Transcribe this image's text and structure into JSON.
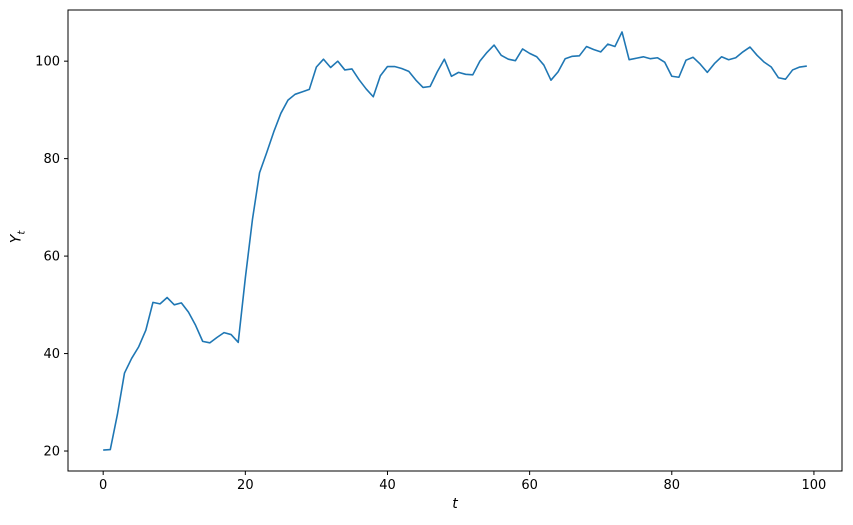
{
  "figure": {
    "background": "#ffffff",
    "xlabel": "t",
    "ylabel_base": "Y",
    "ylabel_subscript": "t"
  },
  "chart_data": {
    "type": "line",
    "title": "",
    "xlabel": "t",
    "ylabel": "Y_t",
    "grid": false,
    "legend": null,
    "line_color": "#1f77b4",
    "axis_color": "#000000",
    "xlim": [
      -4.95,
      103.95
    ],
    "ylim": [
      15.9,
      110.5
    ],
    "xticks": [
      0,
      20,
      40,
      60,
      80,
      100
    ],
    "yticks": [
      20,
      40,
      60,
      80,
      100
    ],
    "x": [
      0,
      1,
      2,
      3,
      4,
      5,
      6,
      7,
      8,
      9,
      10,
      11,
      12,
      13,
      14,
      15,
      16,
      17,
      18,
      19,
      20,
      21,
      22,
      23,
      24,
      25,
      26,
      27,
      28,
      29,
      30,
      31,
      32,
      33,
      34,
      35,
      36,
      37,
      38,
      39,
      40,
      41,
      42,
      43,
      44,
      45,
      46,
      47,
      48,
      49,
      50,
      51,
      52,
      53,
      54,
      55,
      56,
      57,
      58,
      59,
      60,
      61,
      62,
      63,
      64,
      65,
      66,
      67,
      68,
      69,
      70,
      71,
      72,
      73,
      74,
      75,
      76,
      77,
      78,
      79,
      80,
      81,
      82,
      83,
      84,
      85,
      86,
      87,
      88,
      89,
      90,
      91,
      92,
      93,
      94,
      95,
      96,
      97,
      98,
      99
    ],
    "values": [
      20.2,
      20.3,
      27.5,
      36.0,
      39.0,
      41.4,
      44.8,
      50.5,
      50.2,
      51.5,
      50.0,
      50.4,
      48.5,
      45.8,
      42.5,
      42.2,
      43.3,
      44.3,
      43.9,
      42.3,
      55.5,
      67.5,
      77.1,
      81.2,
      85.5,
      89.3,
      92.0,
      93.2,
      93.7,
      94.2,
      98.8,
      100.4,
      98.7,
      100.0,
      98.2,
      98.4,
      96.2,
      94.3,
      92.7,
      97.0,
      98.9,
      98.9,
      98.5,
      97.9,
      96.1,
      94.6,
      94.8,
      97.8,
      100.4,
      96.9,
      97.7,
      97.3,
      97.2,
      100.0,
      101.8,
      103.3,
      101.2,
      100.4,
      100.1,
      102.5,
      101.6,
      100.9,
      99.2,
      96.1,
      97.8,
      100.5,
      101.0,
      101.1,
      103.0,
      102.4,
      101.9,
      103.5,
      103.0,
      106.0,
      100.3,
      100.6,
      100.9,
      100.5,
      100.7,
      99.8,
      96.9,
      96.7,
      100.2,
      100.8,
      99.4,
      97.7,
      99.5,
      100.9,
      100.3,
      100.7,
      101.9,
      102.9,
      101.2,
      99.8,
      98.8,
      96.6,
      96.3,
      98.2,
      98.8,
      99.0
    ]
  }
}
